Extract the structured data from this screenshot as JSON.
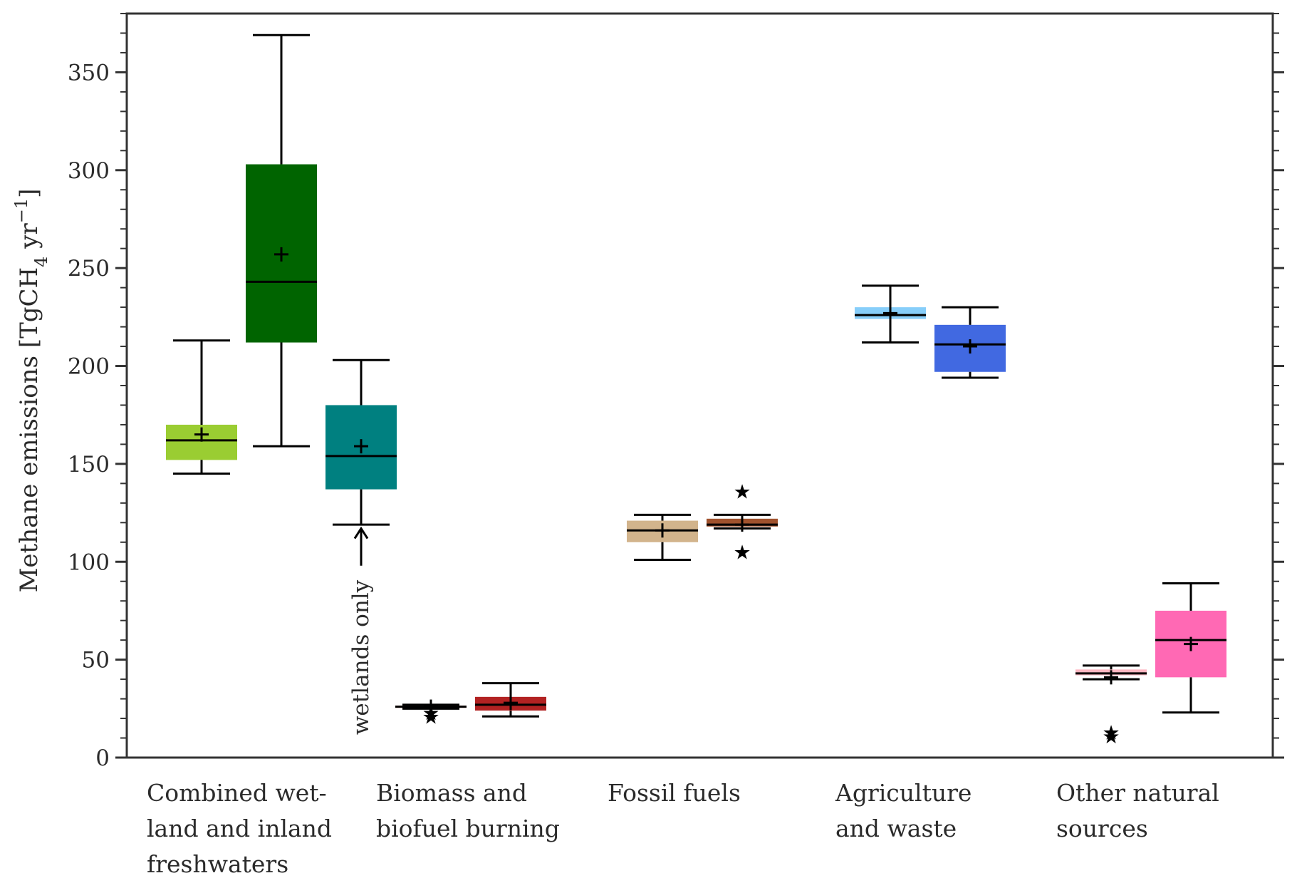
{
  "chart_data": {
    "type": "box",
    "ylabel": "Methane emissions [TgCH₄ yr⁻¹]",
    "ylabel_parts": {
      "main": "Methane emissions [TgCH",
      "sub": "4",
      "mid": " yr",
      "sup": "−1",
      "end": "]"
    },
    "ylim": [
      0,
      380
    ],
    "y_ticks": [
      0,
      50,
      100,
      150,
      200,
      250,
      300,
      350
    ],
    "y_tick_labels": [
      "0",
      "50",
      "100",
      "150",
      "200",
      "250",
      "300",
      "350"
    ],
    "y_minor_step": 10,
    "grid": false,
    "categories": [
      {
        "lines": [
          "Combined wet-",
          "land and inland",
          "freshwaters"
        ]
      },
      {
        "lines": [
          "Biomass and",
          "biofuel burning"
        ]
      },
      {
        "lines": [
          "Fossil fuels"
        ]
      },
      {
        "lines": [
          "Agriculture",
          "and waste"
        ]
      },
      {
        "lines": [
          "Other natural",
          "sources"
        ]
      }
    ],
    "boxes": [
      {
        "category": 0,
        "slot": 0,
        "color": "#9acd32",
        "whisker_low": 145,
        "q1": 152,
        "median": 162,
        "q3": 170,
        "whisker_high": 213,
        "mean": 165,
        "outliers": []
      },
      {
        "category": 0,
        "slot": 1,
        "color": "#006400",
        "whisker_low": 159,
        "q1": 212,
        "median": 243,
        "q3": 303,
        "whisker_high": 369,
        "mean": 257,
        "outliers": []
      },
      {
        "category": 0,
        "slot": 2,
        "color": "#008080",
        "whisker_low": 119,
        "q1": 137,
        "median": 154,
        "q3": 180,
        "whisker_high": 203,
        "mean": 159,
        "outliers": []
      },
      {
        "category": 1,
        "slot": 0,
        "color": "#fa8072",
        "whisker_low": 25,
        "q1": 25.5,
        "median": 26,
        "q3": 26.5,
        "whisker_high": 27,
        "mean": 26,
        "outliers": [
          21,
          23
        ]
      },
      {
        "category": 1,
        "slot": 1,
        "color": "#b22222",
        "whisker_low": 21,
        "q1": 24,
        "median": 27,
        "q3": 31,
        "whisker_high": 38,
        "mean": 28,
        "outliers": []
      },
      {
        "category": 2,
        "slot": 0,
        "color": "#d2b48c",
        "whisker_low": 101,
        "q1": 110,
        "median": 116,
        "q3": 121,
        "whisker_high": 124,
        "mean": 116,
        "outliers": []
      },
      {
        "category": 2,
        "slot": 1,
        "color": "#a0522d",
        "whisker_low": 117,
        "q1": 118,
        "median": 119,
        "q3": 122,
        "whisker_high": 124,
        "mean": 119,
        "outliers": [
          105,
          136
        ]
      },
      {
        "category": 3,
        "slot": 0,
        "color": "#87cefa",
        "whisker_low": 212,
        "q1": 224,
        "median": 226,
        "q3": 230,
        "whisker_high": 241,
        "mean": 227,
        "outliers": []
      },
      {
        "category": 3,
        "slot": 1,
        "color": "#4169e1",
        "whisker_low": 194,
        "q1": 197,
        "median": 211,
        "q3": 221,
        "whisker_high": 230,
        "mean": 210,
        "outliers": []
      },
      {
        "category": 4,
        "slot": 0,
        "color": "#ffb6c1",
        "whisker_low": 40,
        "q1": 42,
        "median": 43,
        "q3": 45,
        "whisker_high": 47,
        "mean": 41,
        "outliers": [
          11,
          13
        ]
      },
      {
        "category": 4,
        "slot": 1,
        "color": "#ff69b4",
        "whisker_low": 23,
        "q1": 41,
        "median": 60,
        "q3": 75,
        "whisker_high": 89,
        "mean": 58,
        "outliers": []
      }
    ],
    "annotations": [
      {
        "text": "wetlands only",
        "category": 0,
        "slot": 2,
        "arrow_tip_y": 117,
        "arrow_tail_y": 98
      }
    ]
  }
}
